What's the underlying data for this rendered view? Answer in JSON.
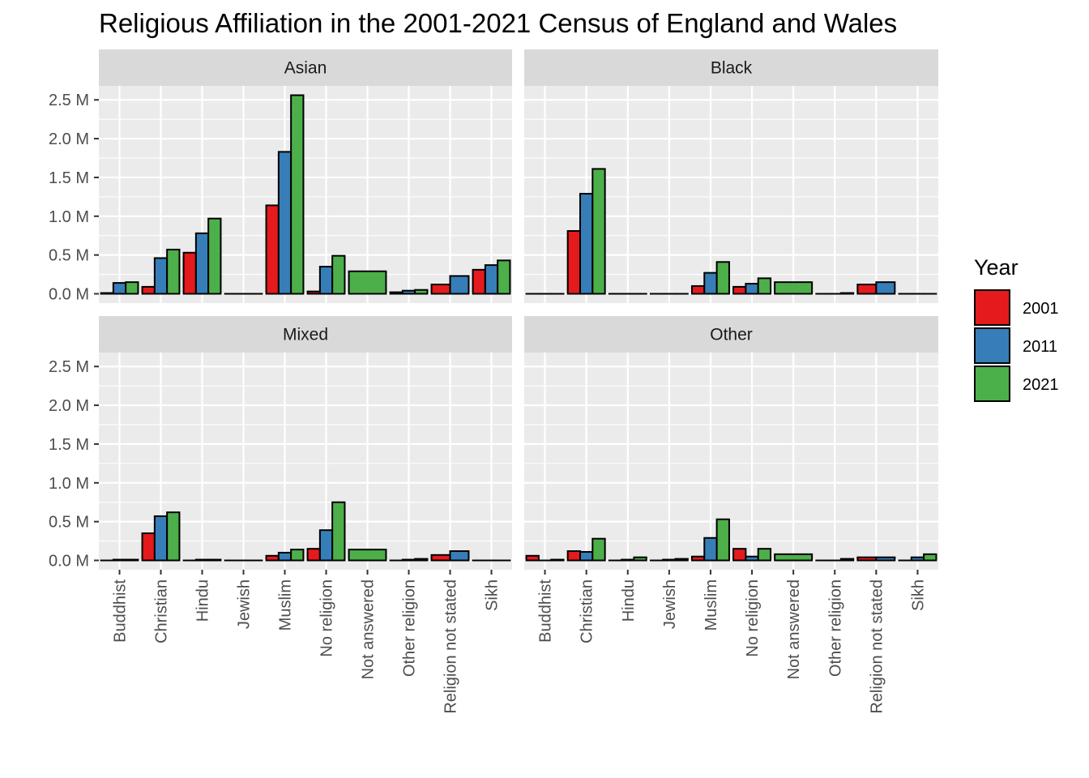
{
  "chart_data": {
    "type": "bar",
    "title": "Religious Affiliation in the 2001-2021 Census of England and Wales",
    "xlabel": "",
    "ylabel": "",
    "ylim": [
      0,
      2.7
    ],
    "yticks": [
      0,
      0.5,
      1.0,
      1.5,
      2.0,
      2.5
    ],
    "ytick_labels": [
      "0.0 M",
      "0.5 M",
      "1.0 M",
      "1.5 M",
      "2.0 M",
      "2.5 M"
    ],
    "grid": true,
    "legend": {
      "title": "Year",
      "position": "right",
      "entries": [
        "2001",
        "2011",
        "2021"
      ]
    },
    "colors": {
      "2001": "#E41A1C",
      "2011": "#377EB8",
      "2021": "#4DAF4A"
    },
    "categories": [
      "Buddhist",
      "Christian",
      "Hindu",
      "Jewish",
      "Muslim",
      "No religion",
      "Not answered",
      "Other religion",
      "Religion not stated",
      "Sikh"
    ],
    "panels": [
      {
        "name": "Asian",
        "series": [
          {
            "name": "2001",
            "values": [
              0.01,
              0.09,
              0.53,
              0.0,
              1.14,
              0.03,
              null,
              0.02,
              0.12,
              0.31
            ]
          },
          {
            "name": "2011",
            "values": [
              0.14,
              0.46,
              0.78,
              0.0,
              1.83,
              0.35,
              null,
              0.04,
              0.23,
              0.37
            ]
          },
          {
            "name": "2021",
            "values": [
              0.15,
              0.57,
              0.97,
              0.0,
              2.56,
              0.49,
              0.29,
              0.05,
              null,
              0.43
            ]
          }
        ]
      },
      {
        "name": "Black",
        "series": [
          {
            "name": "2001",
            "values": [
              0.0,
              0.81,
              0.0,
              0.0,
              0.1,
              0.09,
              null,
              0.0,
              0.12,
              0.0
            ]
          },
          {
            "name": "2011",
            "values": [
              0.0,
              1.29,
              0.0,
              0.0,
              0.27,
              0.13,
              null,
              0.0,
              0.15,
              0.0
            ]
          },
          {
            "name": "2021",
            "values": [
              0.0,
              1.61,
              0.0,
              0.0,
              0.41,
              0.2,
              0.15,
              0.01,
              null,
              0.0
            ]
          }
        ]
      },
      {
        "name": "Mixed",
        "series": [
          {
            "name": "2001",
            "values": [
              0.0,
              0.35,
              0.0,
              0.0,
              0.06,
              0.15,
              null,
              0.0,
              0.07,
              0.0
            ]
          },
          {
            "name": "2011",
            "values": [
              0.01,
              0.57,
              0.01,
              0.0,
              0.1,
              0.39,
              null,
              0.01,
              0.12,
              0.0
            ]
          },
          {
            "name": "2021",
            "values": [
              0.01,
              0.62,
              0.01,
              0.0,
              0.14,
              0.75,
              0.14,
              0.02,
              null,
              0.0
            ]
          }
        ]
      },
      {
        "name": "Other",
        "series": [
          {
            "name": "2001",
            "values": [
              0.06,
              0.12,
              0.0,
              0.0,
              0.05,
              0.15,
              null,
              0.0,
              0.04,
              0.0
            ]
          },
          {
            "name": "2011",
            "values": [
              0.0,
              0.11,
              0.01,
              0.01,
              0.29,
              0.05,
              null,
              0.0,
              0.04,
              0.04
            ]
          },
          {
            "name": "2021",
            "values": [
              0.01,
              0.28,
              0.04,
              0.02,
              0.53,
              0.15,
              0.08,
              0.02,
              null,
              0.08
            ]
          }
        ]
      }
    ]
  }
}
